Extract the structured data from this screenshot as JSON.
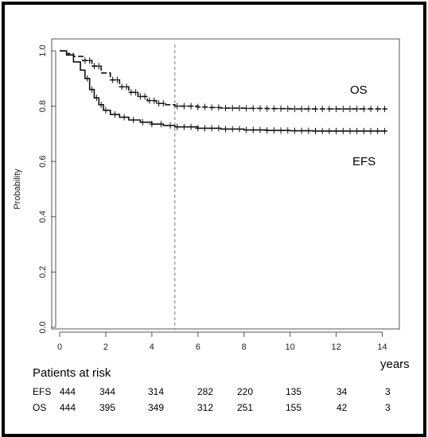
{
  "chart_data": {
    "type": "line",
    "title": "",
    "xlabel": "years",
    "ylabel": "Probability",
    "xlim": [
      0,
      14.5
    ],
    "ylim": [
      0,
      1
    ],
    "xticks": [
      0,
      2,
      4,
      6,
      8,
      10,
      12,
      14
    ],
    "yticks": [
      0.0,
      0.2,
      0.4,
      0.6,
      0.8,
      1.0
    ],
    "ytick_labels": [
      "0.0",
      "0.2",
      "0.4",
      "0.6",
      "0.8",
      "1.0"
    ],
    "reference_line_x": 5,
    "series": [
      {
        "name": "OS",
        "style": "dashed",
        "x": [
          0,
          0.3,
          0.6,
          1.0,
          1.4,
          1.8,
          2.2,
          2.6,
          3.0,
          3.4,
          3.8,
          4.2,
          4.6,
          5.0,
          5.5,
          6.0,
          6.5,
          7.0,
          8.0,
          9.0,
          10.0,
          11.0,
          12.0,
          13.0,
          14.0,
          14.2
        ],
        "y": [
          1.0,
          0.99,
          0.98,
          0.965,
          0.945,
          0.92,
          0.895,
          0.87,
          0.85,
          0.835,
          0.82,
          0.81,
          0.805,
          0.8,
          0.8,
          0.797,
          0.795,
          0.793,
          0.792,
          0.791,
          0.79,
          0.79,
          0.79,
          0.79,
          0.79,
          0.79
        ],
        "censor_x": [
          1.1,
          1.3,
          1.5,
          1.7,
          2.3,
          2.5,
          2.7,
          2.9,
          3.1,
          3.3,
          3.5,
          3.7,
          3.9,
          4.1,
          4.3,
          4.5,
          5.1,
          5.4,
          5.7,
          6.0,
          6.3,
          6.6,
          6.9,
          7.2,
          7.5,
          7.8,
          8.1,
          8.4,
          8.7,
          9.0,
          9.3,
          9.6,
          9.9,
          10.2,
          10.5,
          10.8,
          11.1,
          11.4,
          11.7,
          12.0,
          12.3,
          12.6,
          12.9,
          13.2,
          13.5,
          13.8,
          14.1
        ]
      },
      {
        "name": "EFS",
        "style": "solid",
        "x": [
          0,
          0.3,
          0.6,
          0.9,
          1.1,
          1.3,
          1.5,
          1.7,
          1.9,
          2.2,
          2.6,
          3.0,
          3.5,
          4.0,
          4.5,
          5.0,
          6.0,
          7.0,
          8.0,
          9.0,
          10.0,
          11.0,
          12.0,
          13.0,
          14.0,
          14.2
        ],
        "y": [
          1.0,
          0.985,
          0.96,
          0.93,
          0.9,
          0.86,
          0.83,
          0.805,
          0.785,
          0.77,
          0.76,
          0.75,
          0.742,
          0.735,
          0.73,
          0.725,
          0.72,
          0.717,
          0.714,
          0.712,
          0.711,
          0.71,
          0.71,
          0.71,
          0.71,
          0.71
        ],
        "censor_x": [
          1.2,
          1.4,
          1.6,
          1.8,
          2.0,
          2.4,
          2.8,
          3.2,
          3.6,
          4.0,
          4.4,
          4.8,
          5.1,
          5.4,
          5.7,
          6.0,
          6.3,
          6.6,
          6.9,
          7.2,
          7.5,
          7.8,
          8.1,
          8.4,
          8.7,
          9.0,
          9.3,
          9.6,
          9.9,
          10.2,
          10.5,
          10.8,
          11.1,
          11.4,
          11.7,
          12.0,
          12.3,
          12.6,
          12.9,
          13.2,
          13.5,
          13.8,
          14.1
        ]
      }
    ],
    "curve_labels": [
      "OS",
      "EFS"
    ],
    "risk_table": {
      "title": "Patients at risk",
      "rows": [
        {
          "label": "EFS",
          "values": [
            "444",
            "344",
            "314",
            "282",
            "220",
            "135",
            "34",
            "3"
          ]
        },
        {
          "label": "OS",
          "values": [
            "444",
            "395",
            "349",
            "312",
            "251",
            "155",
            "42",
            "3"
          ]
        }
      ]
    }
  }
}
